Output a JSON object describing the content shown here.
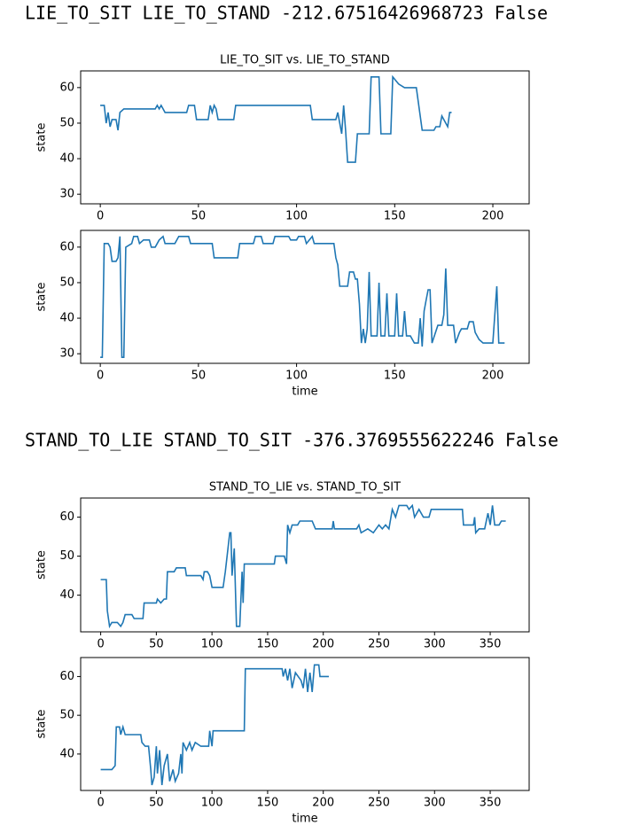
{
  "printed_lines": [
    "LIE_TO_SIT LIE_TO_STAND -212.67516426968723 False",
    "STAND_TO_LIE STAND_TO_SIT -376.3769555622246 False"
  ],
  "chart_data": [
    {
      "type": "line",
      "title": "LIE_TO_SIT vs. LIE_TO_STAND",
      "ylabel": "state",
      "color": "#1f77b4",
      "xlim": [
        -10,
        218.5
      ],
      "ylim": [
        27.3,
        64.7
      ],
      "xticks": [
        0,
        50,
        100,
        150,
        200
      ],
      "yticks": [
        30,
        40,
        50,
        60
      ],
      "x": [
        0,
        2,
        3,
        4,
        5,
        6,
        8,
        9,
        10,
        12,
        28,
        29,
        30,
        31,
        33,
        44,
        45,
        48,
        49,
        55,
        56,
        57,
        58,
        59,
        60,
        65,
        68,
        69,
        107,
        108,
        120,
        121,
        122,
        123,
        124,
        125,
        126,
        130,
        131,
        137,
        138,
        142,
        143,
        148,
        149,
        152,
        155,
        161,
        162,
        164,
        170,
        171,
        173,
        174,
        177,
        178,
        179
      ],
      "values": [
        55,
        55,
        50,
        53,
        49,
        51,
        51,
        48,
        53,
        54,
        54,
        55,
        54,
        55,
        53,
        53,
        55,
        55,
        51,
        51,
        55,
        53,
        55,
        54,
        51,
        51,
        51,
        55,
        55,
        51,
        51,
        53,
        50,
        47,
        55,
        48,
        39,
        39,
        47,
        47,
        63,
        63,
        47,
        47,
        63,
        61,
        60,
        60,
        56,
        48,
        48,
        49,
        49,
        52,
        49,
        53,
        53
      ]
    },
    {
      "type": "line",
      "xlabel": "time",
      "ylabel": "state",
      "color": "#1f77b4",
      "xlim": [
        -10,
        218.5
      ],
      "ylim": [
        27.3,
        64.7
      ],
      "xticks": [
        0,
        50,
        100,
        150,
        200
      ],
      "yticks": [
        30,
        40,
        50,
        60
      ],
      "x": [
        0,
        1,
        2,
        4,
        5,
        6,
        8,
        9,
        10,
        11,
        12,
        13,
        16,
        17,
        19,
        20,
        22,
        25,
        26,
        28,
        30,
        32,
        33,
        38,
        40,
        45,
        46,
        57,
        58,
        70,
        71,
        78,
        79,
        82,
        83,
        88,
        89,
        96,
        97,
        100,
        101,
        104,
        105,
        108,
        109,
        119,
        120,
        121,
        122,
        126,
        127,
        129,
        130,
        131,
        132,
        133,
        134,
        135,
        136,
        137,
        138,
        141,
        142,
        143,
        145,
        146,
        147,
        150,
        151,
        152,
        154,
        155,
        156,
        158,
        160,
        162,
        163,
        164,
        165,
        166,
        167,
        168,
        169,
        172,
        174,
        175,
        176,
        177,
        180,
        181,
        183,
        184,
        187,
        188,
        190,
        191,
        193,
        195,
        200,
        202,
        203,
        206
      ],
      "values": [
        29,
        29,
        61,
        61,
        60,
        56,
        56,
        57,
        63,
        29,
        29,
        60,
        61,
        63,
        63,
        61,
        62,
        62,
        60,
        60,
        62,
        63,
        61,
        61,
        63,
        63,
        61,
        61,
        57,
        57,
        61,
        61,
        63,
        63,
        61,
        61,
        63,
        63,
        62,
        62,
        63,
        63,
        61,
        63,
        61,
        61,
        57,
        55,
        49,
        49,
        53,
        53,
        51,
        51,
        44,
        33,
        37,
        33,
        37,
        53,
        35,
        35,
        50,
        35,
        35,
        47,
        35,
        35,
        47,
        35,
        35,
        42,
        35,
        35,
        33,
        33,
        40,
        32,
        42,
        45,
        48,
        48,
        33,
        38,
        38,
        41,
        54,
        38,
        38,
        33,
        36,
        37,
        37,
        39,
        39,
        36,
        34,
        33,
        33,
        49,
        33,
        33
      ]
    },
    {
      "type": "line",
      "title": "STAND_TO_LIE vs. STAND_TO_SIT",
      "ylabel": "state",
      "color": "#1f77b4",
      "xlim": [
        -18,
        385
      ],
      "ylim": [
        30.6,
        64.9
      ],
      "xticks": [
        0,
        50,
        100,
        150,
        200,
        250,
        300,
        350
      ],
      "yticks": [
        40,
        50,
        60
      ],
      "x": [
        0,
        5,
        6,
        8,
        10,
        15,
        18,
        20,
        22,
        28,
        30,
        38,
        39,
        50,
        51,
        54,
        57,
        59,
        60,
        66,
        68,
        76,
        77,
        90,
        92,
        93,
        96,
        98,
        100,
        105,
        110,
        112,
        116,
        117,
        118,
        120,
        122,
        125,
        127,
        128,
        129,
        156,
        157,
        165,
        167,
        168,
        170,
        172,
        177,
        179,
        190,
        193,
        208,
        209,
        210,
        230,
        232,
        234,
        240,
        245,
        250,
        253,
        256,
        259,
        262,
        265,
        268,
        275,
        277,
        280,
        282,
        286,
        290,
        295,
        297,
        325,
        326,
        335,
        336,
        337,
        340,
        345,
        348,
        350,
        352,
        354,
        358,
        360,
        364
      ],
      "values": [
        44,
        44,
        36,
        32,
        33,
        33,
        32,
        33,
        35,
        35,
        34,
        34,
        38,
        38,
        39,
        38,
        39,
        39,
        46,
        46,
        47,
        47,
        45,
        45,
        44,
        46,
        46,
        45,
        42,
        42,
        42,
        46,
        56,
        56,
        45,
        52,
        32,
        32,
        46,
        38,
        48,
        48,
        50,
        50,
        48,
        58,
        56,
        58,
        58,
        59,
        59,
        57,
        57,
        59,
        57,
        57,
        58,
        56,
        57,
        56,
        58,
        57,
        58,
        57,
        62,
        60,
        63,
        63,
        62,
        63,
        60,
        62,
        60,
        60,
        62,
        62,
        58,
        58,
        60,
        56,
        57,
        57,
        61,
        58,
        63,
        58,
        58,
        59,
        59
      ]
    },
    {
      "type": "line",
      "xlabel": "time",
      "ylabel": "state",
      "color": "#1f77b4",
      "xlim": [
        -18,
        385
      ],
      "ylim": [
        30.6,
        64.9
      ],
      "xticks": [
        0,
        50,
        100,
        150,
        200,
        250,
        300,
        350
      ],
      "yticks": [
        40,
        50,
        60
      ],
      "x": [
        0,
        10,
        13,
        14,
        17,
        18,
        20,
        22,
        36,
        37,
        40,
        43,
        45,
        46,
        48,
        50,
        51,
        53,
        55,
        57,
        60,
        62,
        63,
        65,
        67,
        70,
        72,
        73,
        74,
        77,
        80,
        82,
        85,
        90,
        97,
        98,
        100,
        101,
        129,
        130,
        163,
        164,
        166,
        168,
        170,
        172,
        175,
        180,
        182,
        184,
        186,
        188,
        190,
        192,
        196,
        197,
        200,
        205
      ],
      "values": [
        36,
        36,
        37,
        47,
        47,
        45,
        47,
        45,
        45,
        43,
        42,
        42,
        36,
        32,
        34,
        42,
        35,
        41,
        32,
        37,
        40,
        33,
        34,
        36,
        33,
        35,
        40,
        35,
        43,
        41,
        43,
        41,
        43,
        42,
        42,
        46,
        42,
        46,
        46,
        62,
        62,
        60,
        62,
        59,
        62,
        57,
        61,
        59,
        57,
        62,
        56,
        61,
        56,
        63,
        63,
        60,
        60,
        60
      ]
    }
  ]
}
